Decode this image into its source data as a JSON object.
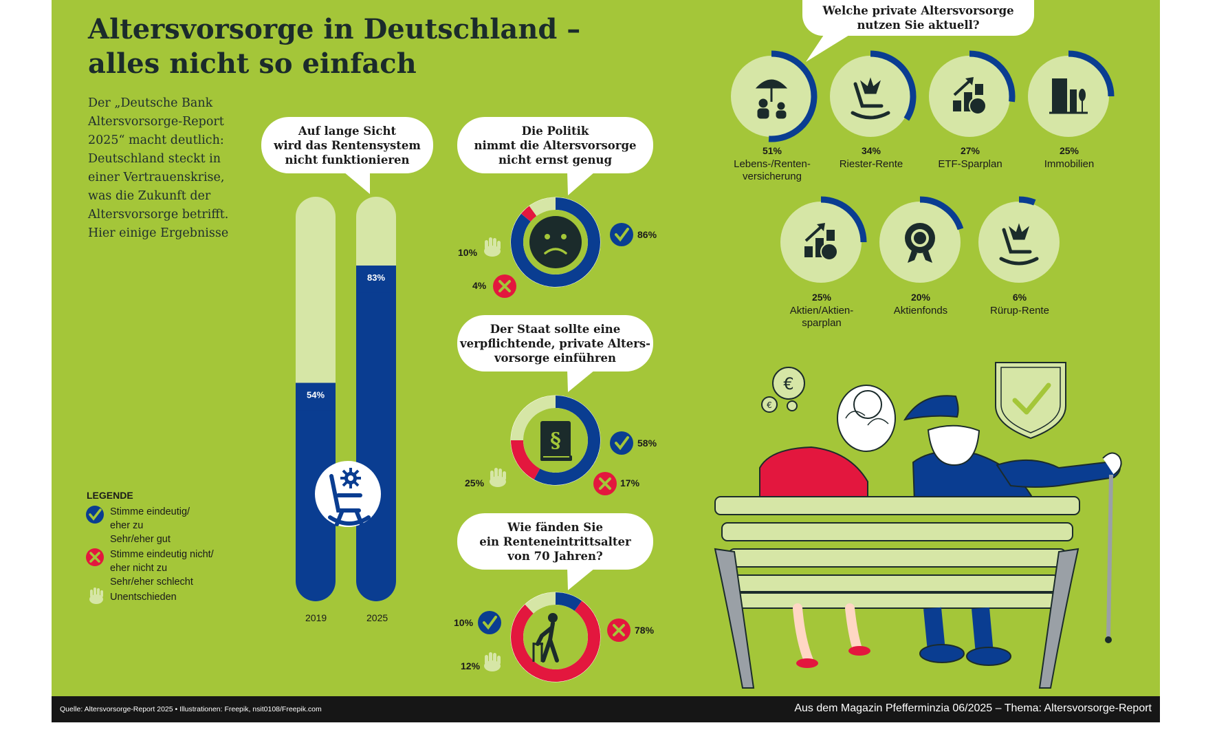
{
  "title": {
    "line1": "Altersvorsorge in Deutschland –",
    "line2": "alles nicht so einfach"
  },
  "intro": "Der „Deutsche Bank Altersvorsorge-Report 2025“ macht deutlich: Deutschland steckt in einer Vertrauenskrise, was die Zukunft der Altersvorsorge betrifft. Hier einige Ergebnisse",
  "legend": {
    "title": "LEGENDE",
    "agree": "Stimme eindeutig/\neher zu\nSehr/eher gut",
    "disagree": "Stimme eindeutig nicht/\neher nicht zu\nSehr/eher schlecht",
    "undecided": "Unentschieden"
  },
  "colors": {
    "background": "#a4c639",
    "blue": "#0a3d91",
    "red": "#e3173e",
    "light": "#d6e6a6"
  },
  "chart_data": [
    {
      "type": "bar",
      "title": "Auf lange Sicht\nwird das Rentensystem\nnicht funktionieren",
      "categories": [
        "2019",
        "2025"
      ],
      "values": [
        54,
        83
      ],
      "value_labels": [
        "54%",
        "83%"
      ],
      "ylim": [
        0,
        100
      ],
      "icon": "rocking-chair-gear-icon"
    },
    {
      "type": "pie",
      "title": "Die Politik\nnimmt die Altersvorsorge\nnicht ernst genug",
      "icon": "sad-face-icon",
      "slices": [
        {
          "name": "agree",
          "value": 86,
          "label": "86%",
          "color": "#0a3d91"
        },
        {
          "name": "disagree",
          "value": 4,
          "label": "4%",
          "color": "#e3173e"
        },
        {
          "name": "undecided",
          "value": 10,
          "label": "10%",
          "color": "#d6e6a6"
        }
      ]
    },
    {
      "type": "pie",
      "title": "Der Staat sollte eine\nverpflichtende, private Alters-\nvorsorge einführen",
      "icon": "law-book-icon",
      "slices": [
        {
          "name": "agree",
          "value": 58,
          "label": "58%",
          "color": "#0a3d91"
        },
        {
          "name": "disagree",
          "value": 17,
          "label": "17%",
          "color": "#e3173e"
        },
        {
          "name": "undecided",
          "value": 25,
          "label": "25%",
          "color": "#d6e6a6"
        }
      ]
    },
    {
      "type": "pie",
      "title": "Wie fänden Sie\nein Renteneintrittsalter\nvon 70 Jahren?",
      "icon": "elderly-walker-icon",
      "slices": [
        {
          "name": "agree",
          "value": 10,
          "label": "10%",
          "color": "#0a3d91"
        },
        {
          "name": "disagree",
          "value": 78,
          "label": "78%",
          "color": "#e3173e"
        },
        {
          "name": "undecided",
          "value": 12,
          "label": "12%",
          "color": "#d6e6a6"
        }
      ]
    },
    {
      "type": "pie",
      "title": "Welche private Altersvorsorge\nnutzen Sie aktuell?",
      "items": [
        {
          "label": "Lebens-/Renten-\nversicherung",
          "value": 51,
          "value_label": "51%",
          "icon": "umbrella-family-icon"
        },
        {
          "label": "Riester-Rente",
          "value": 34,
          "value_label": "34%",
          "icon": "eagle-rocking-chair-icon"
        },
        {
          "label": "ETF-Sparplan",
          "value": 27,
          "value_label": "27%",
          "icon": "growth-chart-icon"
        },
        {
          "label": "Immobilien",
          "value": 25,
          "value_label": "25%",
          "icon": "buildings-icon"
        },
        {
          "label": "Aktien/Aktien-\nsparplan",
          "value": 25,
          "value_label": "25%",
          "icon": "growth-chart-icon"
        },
        {
          "label": "Aktienfonds",
          "value": 20,
          "value_label": "20%",
          "icon": "rosette-icon"
        },
        {
          "label": "Rürup-Rente",
          "value": 6,
          "value_label": "6%",
          "icon": "eagle-rocking-chair-icon"
        }
      ]
    }
  ],
  "footer": {
    "left": "Quelle: Altersvorsorge-Report 2025 • Illustrationen: Freepik, nsit0108/Freepik.com",
    "right": "Aus dem Magazin Pfefferminzia 06/2025 – Thema: Altersvorsorge-Report"
  }
}
